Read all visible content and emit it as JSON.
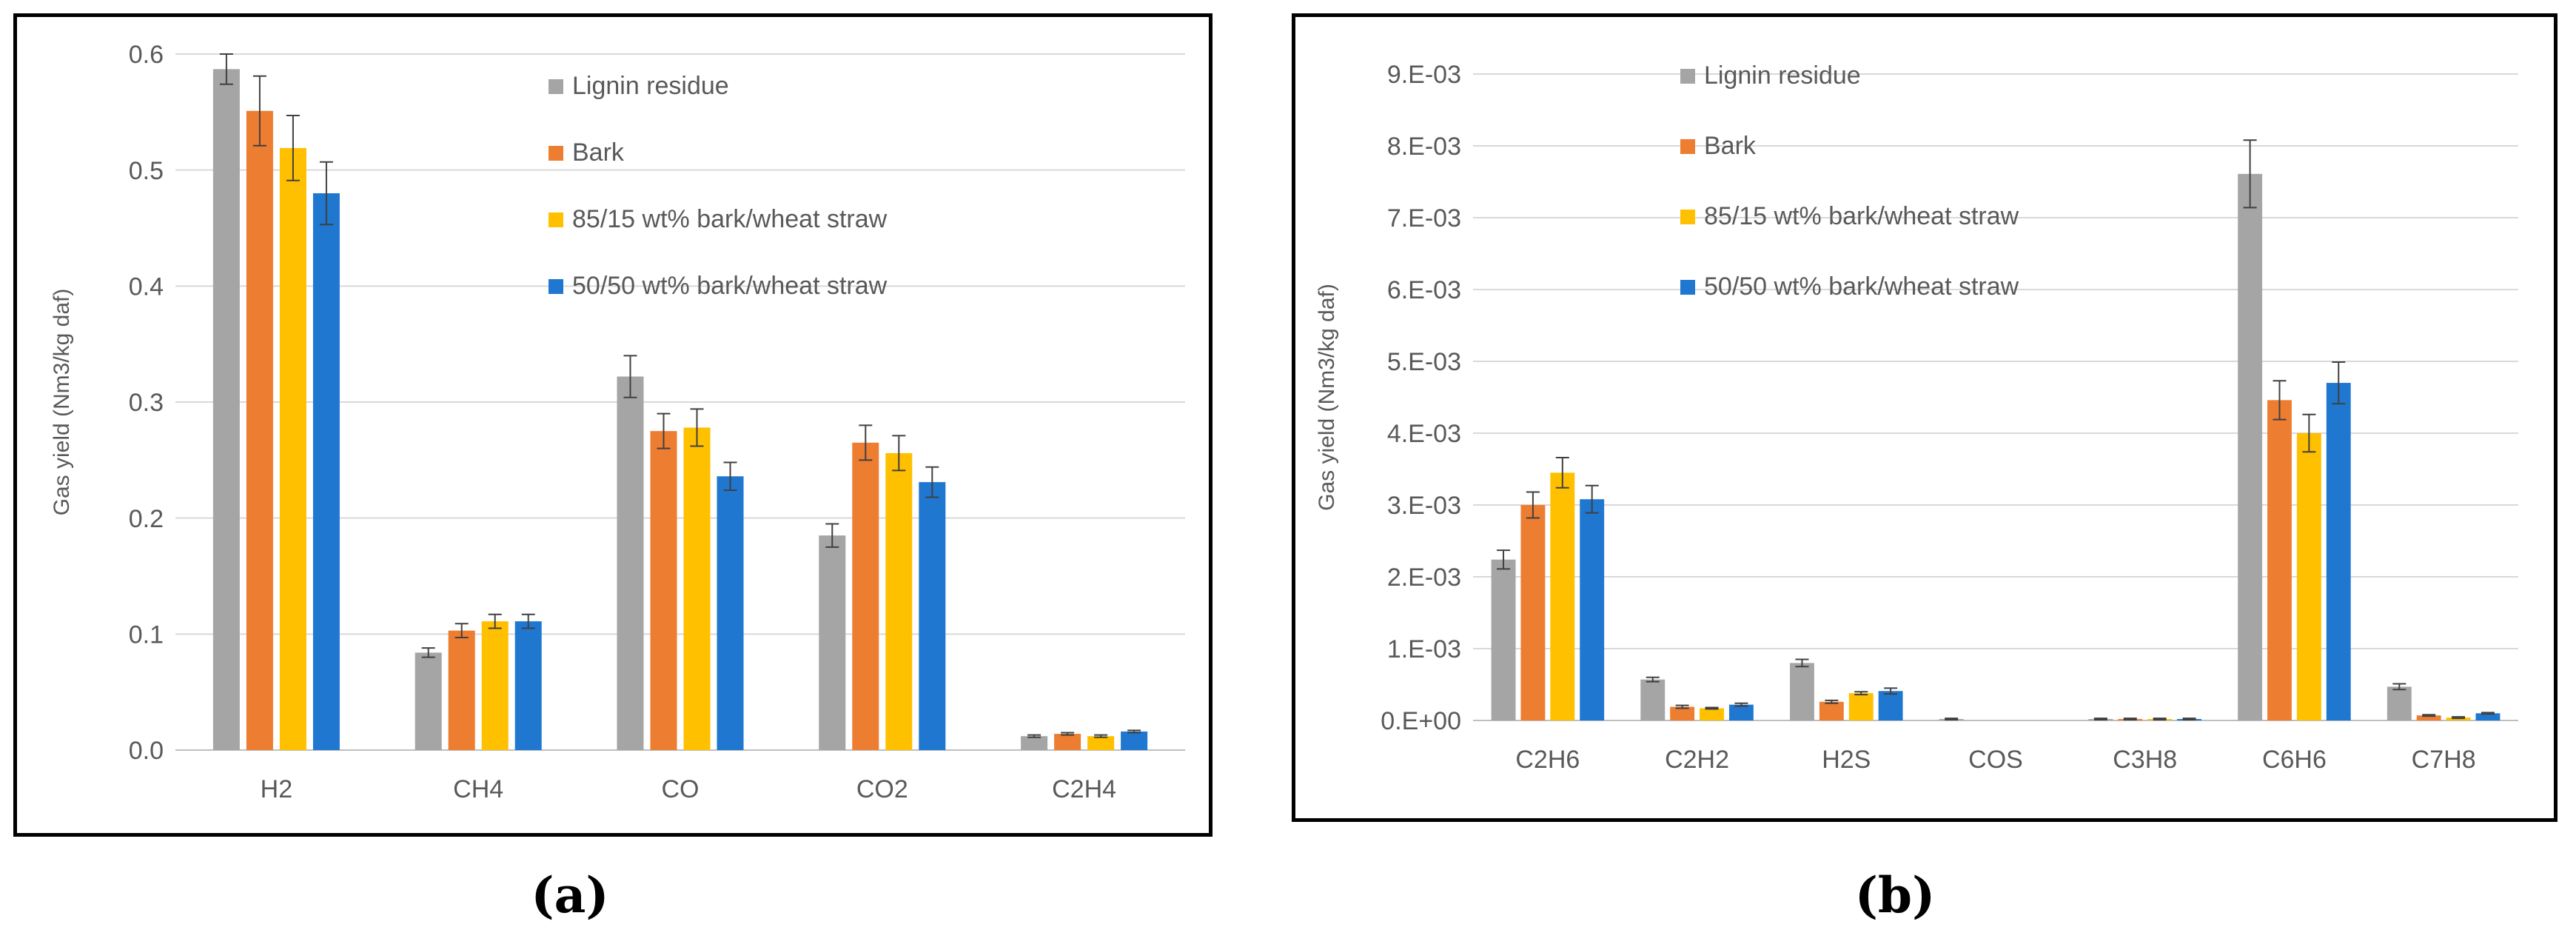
{
  "chart_data": [
    {
      "type": "bar",
      "panel": "(a)",
      "title": "",
      "xlabel": "",
      "ylabel": "Gas yield (Nm3/kg daf)",
      "categories": [
        "H2",
        "CH4",
        "CO",
        "CO2",
        "C2H4"
      ],
      "ylim": [
        0,
        0.6
      ],
      "yticks": [
        0,
        0.1,
        0.2,
        0.3,
        0.4,
        0.5,
        0.6
      ],
      "ytick_labels": [
        "0.0",
        "0.1",
        "0.2",
        "0.3",
        "0.4",
        "0.5",
        "0.6"
      ],
      "grid": true,
      "legend_position": "top-right",
      "series": [
        {
          "name": "Lignin residue",
          "color": "#a5a5a5",
          "values": [
            0.587,
            0.084,
            0.322,
            0.185,
            0.012
          ],
          "errors": [
            0.013,
            0.004,
            0.018,
            0.01,
            0.001
          ]
        },
        {
          "name": "Bark",
          "color": "#ed7d31",
          "values": [
            0.551,
            0.103,
            0.275,
            0.265,
            0.014
          ],
          "errors": [
            0.03,
            0.006,
            0.015,
            0.015,
            0.001
          ]
        },
        {
          "name": "85/15 wt% bark/wheat straw",
          "color": "#ffc000",
          "values": [
            0.519,
            0.111,
            0.278,
            0.256,
            0.012
          ],
          "errors": [
            0.028,
            0.006,
            0.016,
            0.015,
            0.001
          ]
        },
        {
          "name": "50/50 wt% bark/wheat straw",
          "color": "#1f77d0",
          "values": [
            0.48,
            0.111,
            0.236,
            0.231,
            0.016
          ],
          "errors": [
            0.027,
            0.006,
            0.012,
            0.013,
            0.001
          ]
        }
      ]
    },
    {
      "type": "bar",
      "panel": "(b)",
      "title": "",
      "xlabel": "",
      "ylabel": "Gas yield (Nm3/kg daf)",
      "categories": [
        "C2H6",
        "C2H2",
        "H2S",
        "COS",
        "C3H8",
        "C6H6",
        "C7H8"
      ],
      "ylim": [
        0,
        0.009
      ],
      "yticks": [
        0,
        0.001,
        0.002,
        0.003,
        0.004,
        0.005,
        0.006,
        0.007,
        0.008,
        0.009
      ],
      "ytick_labels": [
        "0.E+00",
        "1.E-03",
        "2.E-03",
        "3.E-03",
        "4.E-03",
        "5.E-03",
        "6.E-03",
        "7.E-03",
        "8.E-03",
        "9.E-03"
      ],
      "grid": true,
      "legend_position": "top-right",
      "series": [
        {
          "name": "Lignin residue",
          "color": "#a5a5a5",
          "values": [
            0.00224,
            0.00057,
            0.0008,
            2e-05,
            2e-05,
            0.00761,
            0.00047
          ],
          "errors": [
            0.00013,
            3e-05,
            5e-05,
            1e-05,
            1e-05,
            0.00047,
            4e-05
          ]
        },
        {
          "name": "Bark",
          "color": "#ed7d31",
          "values": [
            0.003,
            0.00019,
            0.00026,
            0.0,
            2e-05,
            0.00446,
            7e-05
          ],
          "errors": [
            0.00018,
            2e-05,
            2e-05,
            0.0,
            1e-05,
            0.00027,
            1e-05
          ]
        },
        {
          "name": "85/15 wt% bark/wheat straw",
          "color": "#ffc000",
          "values": [
            0.00345,
            0.00017,
            0.00038,
            0.0,
            2e-05,
            0.004,
            4e-05
          ],
          "errors": [
            0.00021,
            1e-05,
            2e-05,
            0.0,
            1e-05,
            0.00026,
            1e-05
          ]
        },
        {
          "name": "50/50 wt% bark/wheat straw",
          "color": "#1f77d0",
          "values": [
            0.00308,
            0.00022,
            0.00041,
            0.0,
            2e-05,
            0.0047,
            0.0001
          ],
          "errors": [
            0.00019,
            2e-05,
            4e-05,
            0.0,
            1e-05,
            0.00029,
            1e-05
          ]
        }
      ]
    }
  ],
  "captions": {
    "a": "(a)",
    "b": "(b)"
  }
}
